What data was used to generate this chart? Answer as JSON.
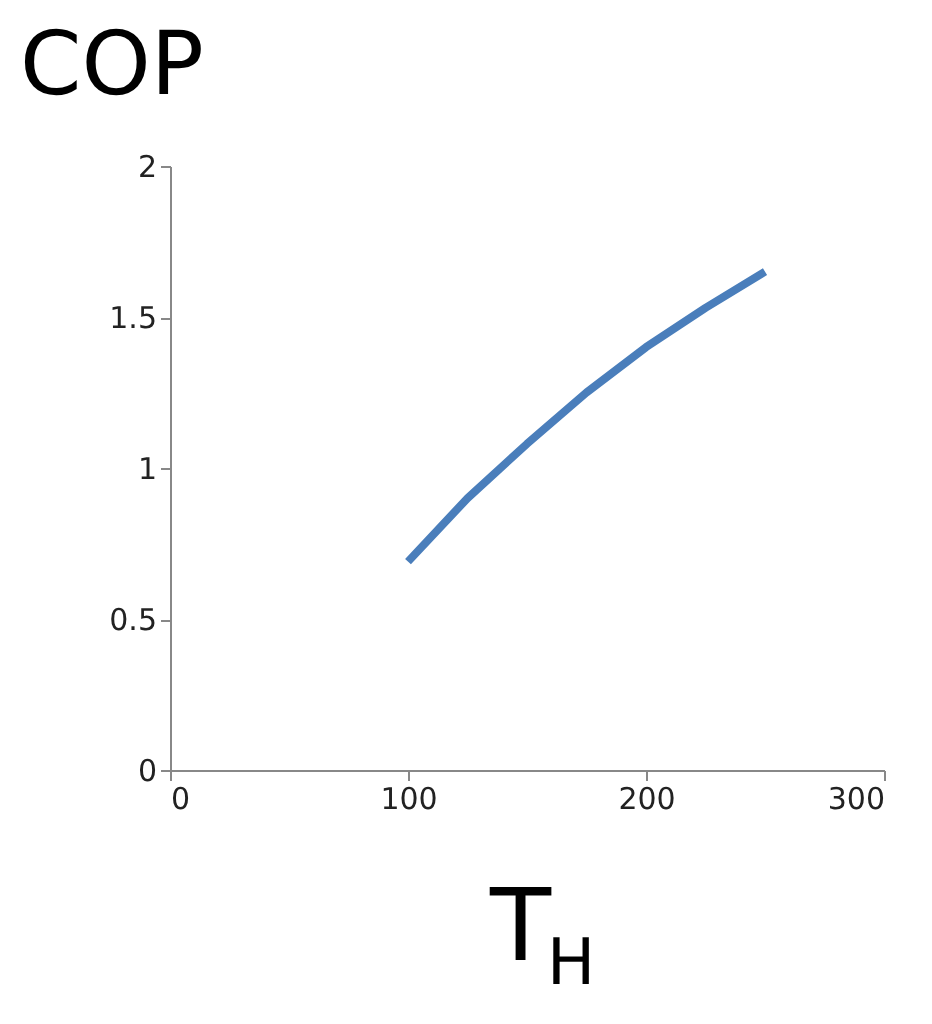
{
  "chart_data": {
    "type": "line",
    "title": "COP",
    "xlabel": "T$_{H}$",
    "x": [
      100,
      125,
      150,
      175,
      200,
      225,
      250
    ],
    "series": [
      {
        "color": "#4a7ebb",
        "values": [
          0.69,
          0.9,
          1.08,
          1.25,
          1.4,
          1.53,
          1.65
        ]
      }
    ],
    "xlim": [
      0,
      300
    ],
    "xticks": [
      0,
      100,
      200,
      300
    ],
    "ylim": [
      0,
      2
    ],
    "yticks": [
      0,
      0.5,
      1,
      1.5,
      2
    ],
    "grid": false,
    "legend": false,
    "marker": "none",
    "line_style": "solid"
  }
}
